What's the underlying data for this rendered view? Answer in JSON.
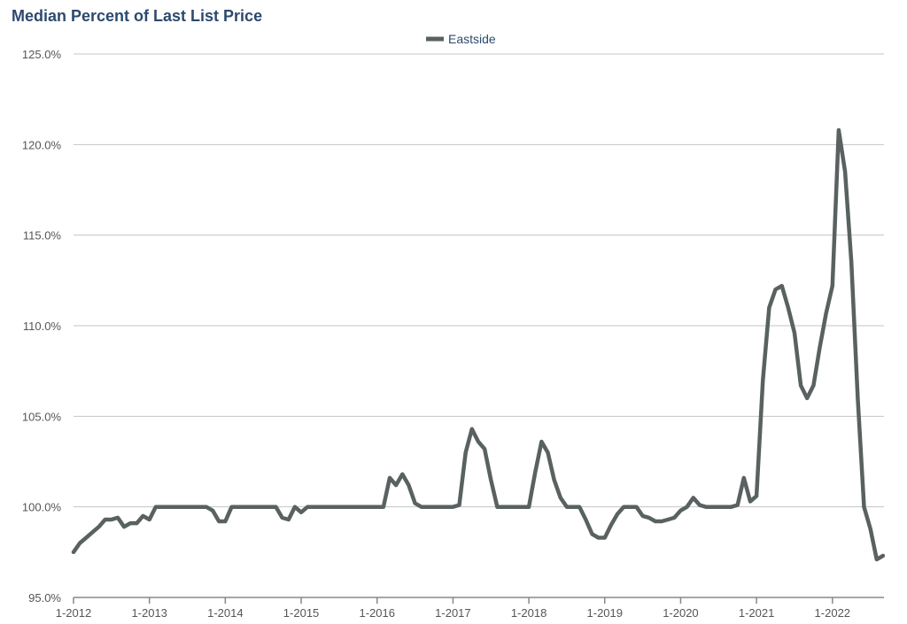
{
  "chart_data": {
    "type": "line",
    "title": "Median Percent of Last List Price",
    "xlabel": "",
    "ylabel": "",
    "ylim": [
      95,
      125
    ],
    "yticks": [
      "95.0%",
      "100.0%",
      "105.0%",
      "110.0%",
      "115.0%",
      "120.0%",
      "125.0%"
    ],
    "xticks": [
      "1-2012",
      "1-2013",
      "1-2014",
      "1-2015",
      "1-2016",
      "1-2017",
      "1-2018",
      "1-2019",
      "1-2020",
      "1-2021",
      "1-2022"
    ],
    "x_start": "1-2012",
    "x_end": "9-2022",
    "x_interval": "monthly",
    "grid": "horizontal",
    "legend_position": "top-center",
    "series": [
      {
        "name": "Eastside",
        "color": "#596161",
        "values": [
          97.5,
          98.0,
          98.3,
          98.6,
          98.9,
          99.3,
          99.3,
          99.4,
          98.9,
          99.1,
          99.1,
          99.5,
          99.3,
          100,
          100,
          100,
          100,
          100,
          100,
          100,
          100,
          100,
          99.8,
          99.2,
          99.2,
          100,
          100,
          100,
          100,
          100,
          100,
          100,
          100,
          99.4,
          99.3,
          100,
          99.7,
          100,
          100,
          100,
          100,
          100,
          100,
          100,
          100,
          100,
          100,
          100,
          100,
          100,
          101.6,
          101.2,
          101.8,
          101.2,
          100.2,
          100,
          100,
          100,
          100,
          100,
          100,
          100.1,
          103,
          104.3,
          103.6,
          103.2,
          101.5,
          100,
          100,
          100,
          100,
          100,
          100,
          101.9,
          103.6,
          103,
          101.5,
          100.5,
          100,
          100,
          100,
          99.3,
          98.5,
          98.3,
          98.3,
          99,
          99.6,
          100,
          100,
          100,
          99.5,
          99.4,
          99.2,
          99.2,
          99.3,
          99.4,
          99.8,
          100,
          100.5,
          100.1,
          100,
          100,
          100,
          100,
          100,
          100.1,
          101.6,
          100.3,
          100.6,
          107,
          111,
          112,
          112.2,
          111,
          109.6,
          106.7,
          106,
          106.7,
          108.8,
          110.7,
          112.2,
          120.8,
          118.5,
          113.5,
          106,
          100,
          98.8,
          97.1,
          97.3
        ]
      }
    ]
  }
}
